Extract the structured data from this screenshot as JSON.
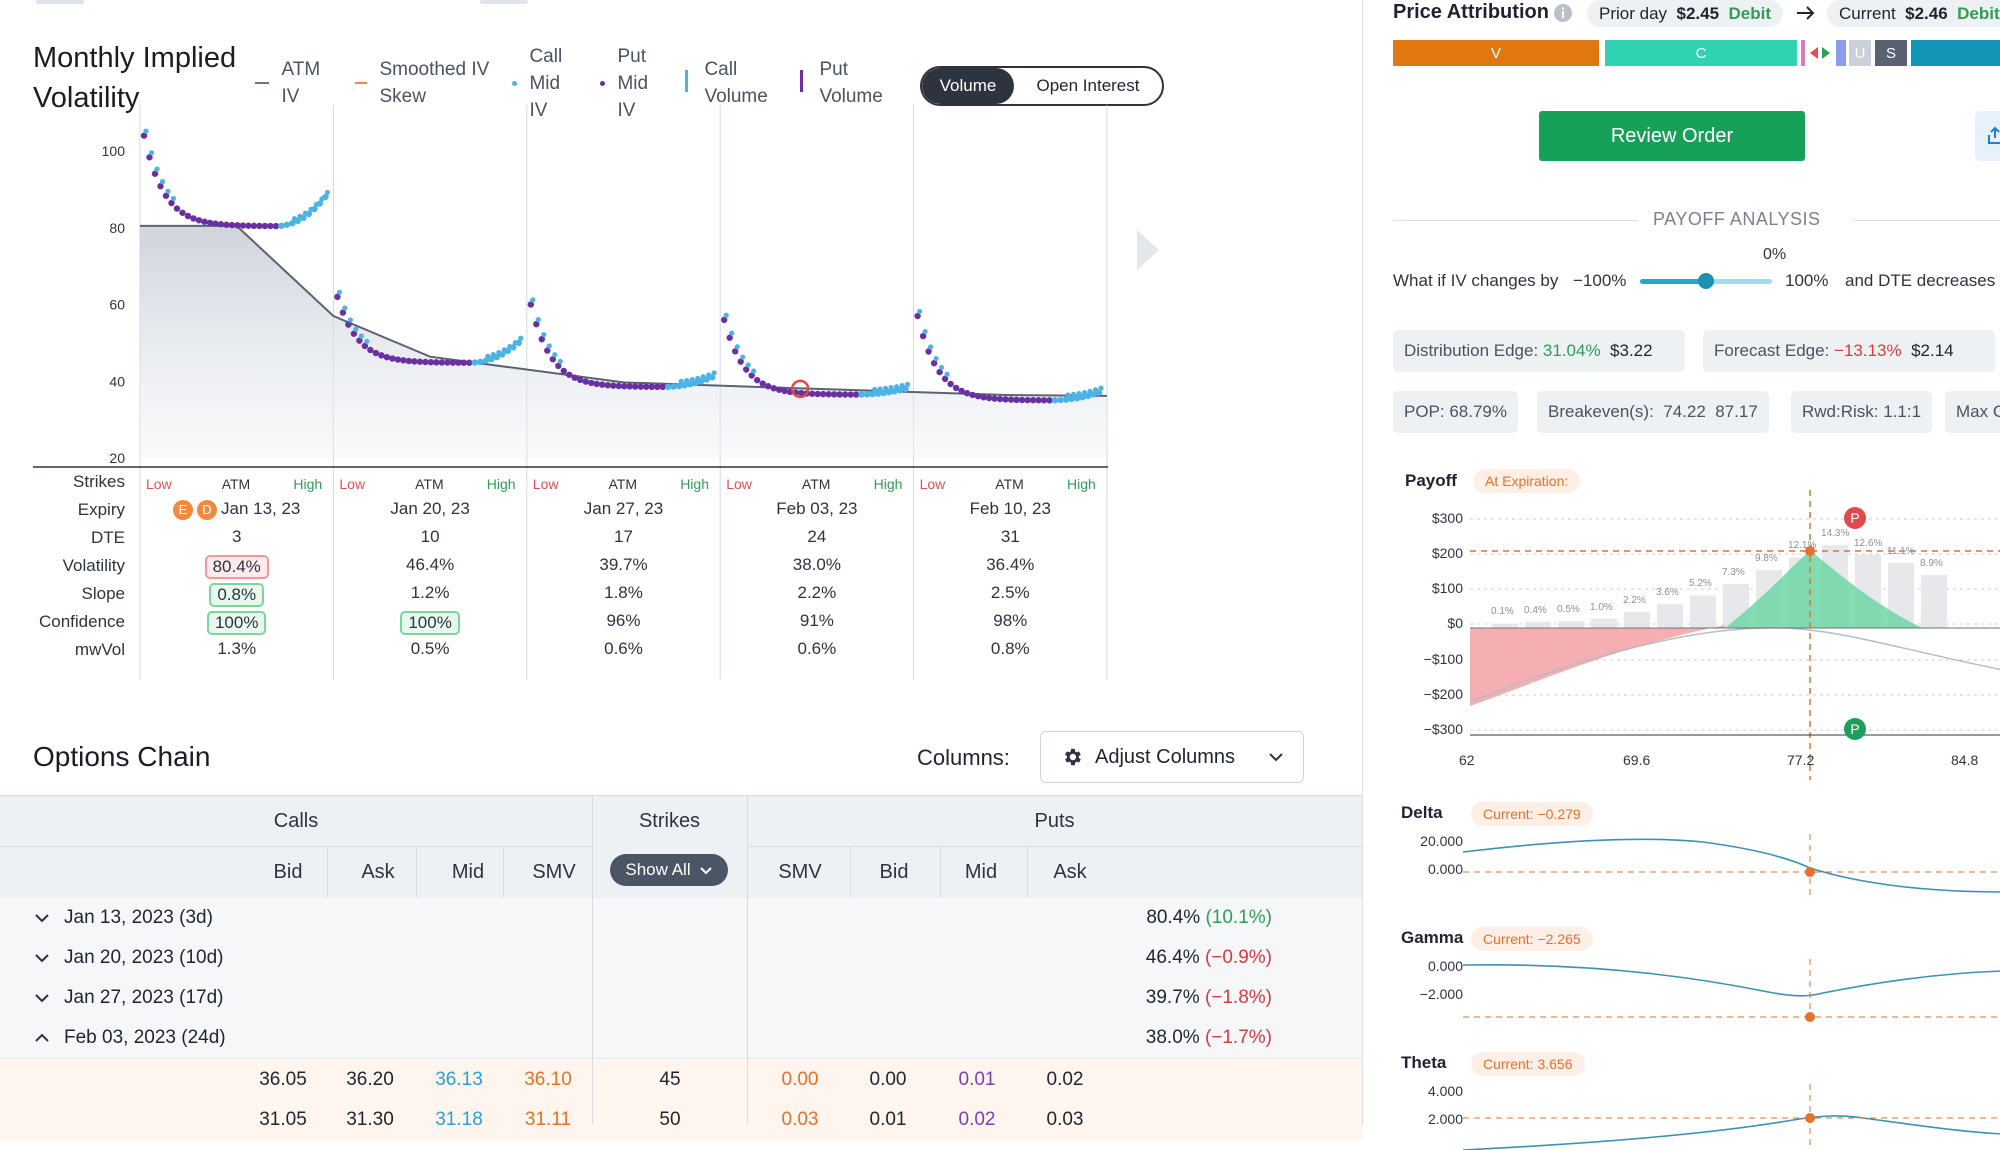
{
  "volatility_chart": {
    "title": "Monthly Implied Volatility",
    "legend": [
      {
        "label": "ATM IV",
        "color": "#6b7280"
      },
      {
        "label": "Smoothed IV Skew",
        "color": "#f08a3c"
      },
      {
        "label": "Call Mid IV",
        "color": "#4cb3e6"
      },
      {
        "label": "Put Mid IV",
        "color": "#6a2fa0"
      },
      {
        "label": "Call Volume",
        "color": "#4cb3e6"
      },
      {
        "label": "Put Volume",
        "color": "#6a2fa0"
      }
    ],
    "toggle": {
      "active": "Volume",
      "inactive": "Open Interest"
    },
    "y_ticks": [
      "100",
      "80",
      "60",
      "40",
      "20"
    ]
  },
  "chart_data": {
    "type": "scatter",
    "ylim": [
      20,
      107
    ],
    "atm_line": [
      {
        "x": 0.0,
        "y": 80.5
      },
      {
        "x": 0.5,
        "y": 80.5
      },
      {
        "x": 1.0,
        "y": 57
      },
      {
        "x": 1.5,
        "y": 46.4
      },
      {
        "x": 2.5,
        "y": 39.7
      },
      {
        "x": 3.5,
        "y": 38.0
      },
      {
        "x": 4.5,
        "y": 36.4
      },
      {
        "x": 5.0,
        "y": 36.2
      }
    ],
    "expiries": [
      {
        "expiry": "Jan 13, 23",
        "atm_iv": 80.4,
        "start": 104,
        "bottom": 80.4,
        "end": 88
      },
      {
        "expiry": "Jan 20, 23",
        "atm_iv": 46.4,
        "start": 62,
        "bottom": 44.8,
        "end": 50
      },
      {
        "expiry": "Jan 27, 23",
        "atm_iv": 39.7,
        "start": 60,
        "bottom": 38.5,
        "end": 41
      },
      {
        "expiry": "Feb 03, 23",
        "atm_iv": 38.0,
        "start": 56,
        "bottom": 36.5,
        "end": 38
      },
      {
        "expiry": "Feb 10, 23",
        "atm_iv": 36.4,
        "start": 57,
        "bottom": 35.0,
        "end": 37
      }
    ],
    "highlight_point": {
      "expiry_index": 3,
      "y": 38.0
    }
  },
  "strikes_table": {
    "row_labels": [
      "Strikes",
      "Expiry",
      "DTE",
      "Volatility",
      "Slope",
      "Confidence",
      "mwVol"
    ],
    "strike_ticks": {
      "low": "Low",
      "atm": "ATM",
      "high": "High"
    },
    "badges": [
      "E",
      "D"
    ],
    "columns": [
      {
        "expiry": "Jan 13, 23",
        "dte": "3",
        "volatility": "80.4%",
        "slope": "0.8%",
        "confidence": "100%",
        "mwvol": "1.3%"
      },
      {
        "expiry": "Jan 20, 23",
        "dte": "10",
        "volatility": "46.4%",
        "slope": "1.2%",
        "confidence": "100%",
        "mwvol": "0.5%"
      },
      {
        "expiry": "Jan 27, 23",
        "dte": "17",
        "volatility": "39.7%",
        "slope": "1.8%",
        "confidence": "96%",
        "mwvol": "0.6%"
      },
      {
        "expiry": "Feb 03, 23",
        "dte": "24",
        "volatility": "38.0%",
        "slope": "2.2%",
        "confidence": "91%",
        "mwvol": "0.6%"
      },
      {
        "expiry": "Feb 10, 23",
        "dte": "31",
        "volatility": "36.4%",
        "slope": "2.5%",
        "confidence": "98%",
        "mwvol": "0.8%"
      }
    ]
  },
  "options_chain": {
    "title": "Options Chain",
    "columns_label": "Columns:",
    "adjust_button": "Adjust Columns",
    "header_groups": {
      "calls": "Calls",
      "strikes": "Strikes",
      "puts": "Puts"
    },
    "call_cols": [
      "Bid",
      "Ask",
      "Mid",
      "SMV"
    ],
    "put_cols": [
      "SMV",
      "Bid",
      "Mid",
      "Ask"
    ],
    "show_all": "Show All",
    "expiries": [
      {
        "label": "Jan 13, 2023 (3d)",
        "iv": "80.4%",
        "chg": "(10.1%)",
        "chg_color": "#2e9e55",
        "expanded": false
      },
      {
        "label": "Jan 20, 2023 (10d)",
        "iv": "46.4%",
        "chg": "(−0.9%)",
        "chg_color": "#d63c3c",
        "expanded": false
      },
      {
        "label": "Jan 27, 2023 (17d)",
        "iv": "39.7%",
        "chg": "(−1.8%)",
        "chg_color": "#d63c3c",
        "expanded": false
      },
      {
        "label": "Feb 03, 2023 (24d)",
        "iv": "38.0%",
        "chg": "(−1.7%)",
        "chg_color": "#d63c3c",
        "expanded": true
      }
    ],
    "rows": [
      {
        "call_bid": "36.05",
        "call_ask": "36.20",
        "call_mid": "36.13",
        "call_smv": "36.10",
        "strike": "45",
        "put_smv": "0.00",
        "put_bid": "0.00",
        "put_mid": "0.01",
        "put_ask": "0.02"
      },
      {
        "call_bid": "31.05",
        "call_ask": "31.30",
        "call_mid": "31.18",
        "call_smv": "31.11",
        "strike": "50",
        "put_smv": "0.03",
        "put_bid": "0.01",
        "put_mid": "0.02",
        "put_ask": "0.03"
      }
    ]
  },
  "right_panel": {
    "price_attribution": "Price Attribution",
    "prior_day_label": "Prior day",
    "prior_day_value": "$2.45",
    "prior_day_type": "Debit",
    "current_label": "Current",
    "current_value": "$2.46",
    "current_type": "Debit",
    "attribution_segments": [
      "V",
      "C",
      "U",
      "S"
    ],
    "review_order": "Review Order",
    "payoff_analysis": "PAYOFF ANALYSIS",
    "iv_slider": {
      "prefix": "What if IV changes by",
      "min": "−100%",
      "max": "100%",
      "value": "0%",
      "suffix": "and DTE decreases b",
      "fraction": 0.5
    },
    "distribution_edge": {
      "label": "Distribution Edge:",
      "pct": "31.04%",
      "value": "$3.22"
    },
    "forecast_edge": {
      "label": "Forecast Edge:",
      "pct": "−13.13%",
      "value": "$2.14"
    },
    "pop": "POP: 68.79%",
    "breakevens": "Breakeven(s):  74.22  87.17",
    "rwd_risk": "Rwd:Risk: 1.1:1",
    "max": "Max G",
    "payoff_label": "Payoff",
    "at_expiration": "At Expiration:",
    "payoff_y": [
      "$300",
      "$200",
      "$100",
      "$0",
      "−$100",
      "−$200",
      "−$300"
    ],
    "payoff_x": [
      "62",
      "69.6",
      "77.2",
      "84.8"
    ],
    "bar_pcts": [
      "0.1%",
      "0.4%",
      "0.5%",
      "1.0%",
      "2.2%",
      "3.6%",
      "5.2%",
      "7.3%",
      "9.8%",
      "12.1%",
      "14.3%",
      "12.6%",
      "11.1%",
      "8.9%"
    ],
    "markers": {
      "top": "P",
      "bottom": "P"
    },
    "greeks": [
      {
        "name": "Delta",
        "current": "Current:  −0.279",
        "y": [
          "20.000",
          "0.000"
        ]
      },
      {
        "name": "Gamma",
        "current": "Current:  −2.265",
        "y": [
          "0.000",
          "−2.000"
        ]
      },
      {
        "name": "Theta",
        "current": "Current:  3.656",
        "y": [
          "4.000",
          "2.000"
        ]
      }
    ]
  }
}
